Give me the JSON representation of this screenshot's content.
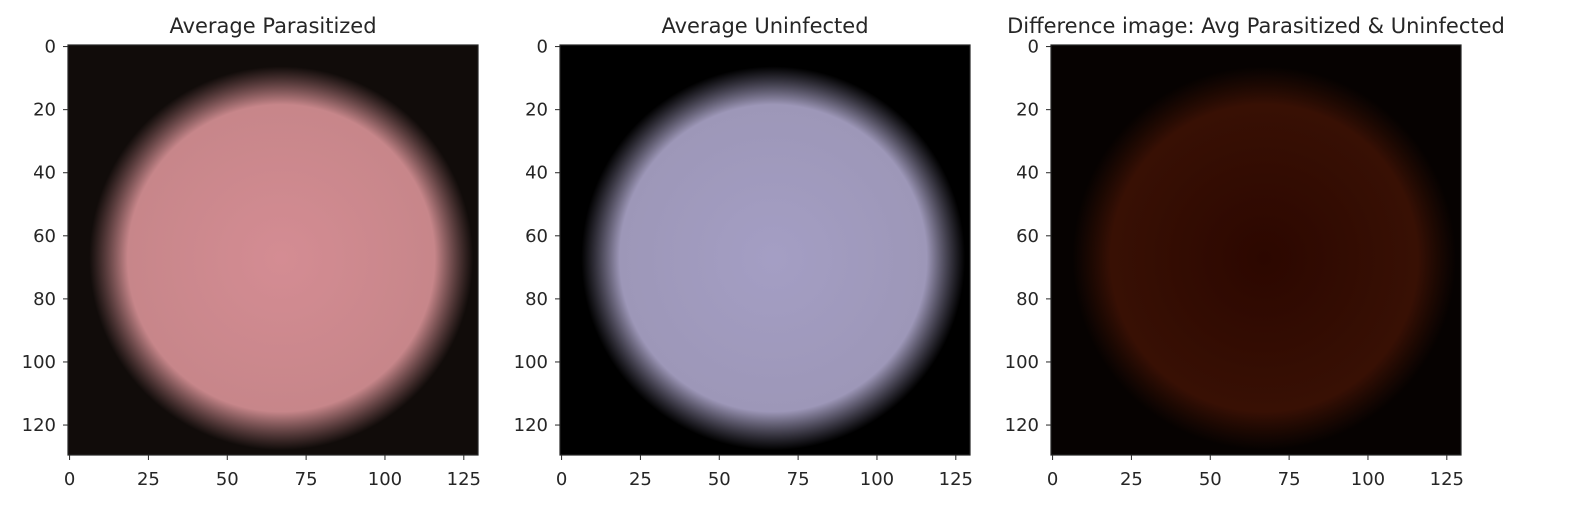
{
  "chart_data": [
    {
      "type": "image",
      "title": "Average Parasitized",
      "xticks": [
        0,
        25,
        50,
        75,
        100,
        125
      ],
      "yticks": [
        0,
        20,
        40,
        60,
        80,
        100,
        120
      ],
      "xlim": [
        -0.5,
        129.5
      ],
      "ylim": [
        129.5,
        -0.5
      ],
      "colors": {
        "center": "#d48c93",
        "mid": "#c7868a",
        "edge": "#110c0a"
      }
    },
    {
      "type": "image",
      "title": "Average Uninfected",
      "xticks": [
        0,
        25,
        50,
        75,
        100,
        125
      ],
      "yticks": [
        0,
        20,
        40,
        60,
        80,
        100,
        120
      ],
      "xlim": [
        -0.5,
        129.5
      ],
      "ylim": [
        129.5,
        -0.5
      ],
      "colors": {
        "center": "#a49ec4",
        "mid": "#9d97b8",
        "edge": "#000000"
      }
    },
    {
      "type": "image",
      "title": "Difference image: Avg Parasitized & Uninfected",
      "xticks": [
        0,
        25,
        50,
        75,
        100,
        125
      ],
      "yticks": [
        0,
        20,
        40,
        60,
        80,
        100,
        120
      ],
      "xlim": [
        -0.5,
        129.5
      ],
      "ylim": [
        129.5,
        -0.5
      ],
      "colors": {
        "center": "#2c0700",
        "mid": "#381004",
        "edge": "#060201"
      }
    }
  ]
}
